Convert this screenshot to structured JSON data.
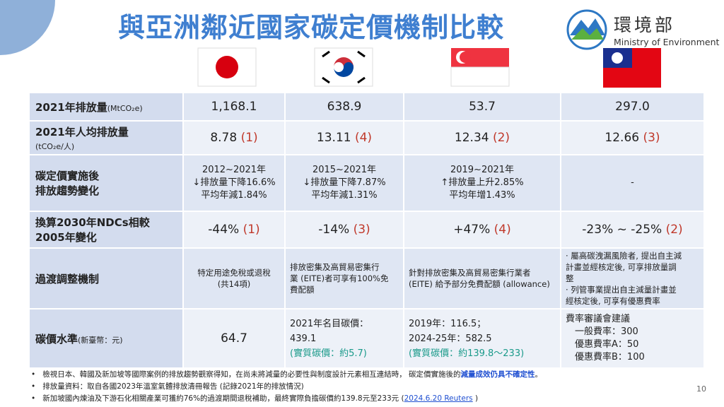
{
  "header": {
    "title": "與亞洲鄰近國家碳定價機制比較",
    "logo_text": "環境部",
    "logo_subtext": "Ministry of Environment"
  },
  "table": {
    "rows": [
      {
        "label": [
          [
            "2021年排放量",
            {
              "text": "(MtCO₂e)",
              "size": "small"
            }
          ]
        ],
        "cells": [
          [
            [
              "1,168.1"
            ]
          ],
          [
            [
              "638.9"
            ]
          ],
          [
            [
              "53.7"
            ]
          ],
          [
            [
              "297.0"
            ]
          ]
        ]
      },
      {
        "label": [
          [
            "2021年人均排放量"
          ],
          [
            {
              "text": "(tCO₂e/人)",
              "size": "small"
            }
          ]
        ],
        "cells": [
          [
            [
              "8.78 ",
              {
                "text": "(1)",
                "color": "#c0392b"
              }
            ]
          ],
          [
            [
              "13.11 ",
              {
                "text": "(4)",
                "color": "#c0392b"
              }
            ]
          ],
          [
            [
              "12.34 ",
              {
                "text": "(2)",
                "color": "#c0392b"
              }
            ]
          ],
          [
            [
              "12.66 ",
              {
                "text": "(3)",
                "color": "#c0392b"
              }
            ]
          ]
        ]
      },
      {
        "label": [
          [
            "碳定價實施後"
          ],
          [
            "排放趨勢變化"
          ]
        ],
        "cells": [
          [
            [
              "2012~2021年"
            ],
            [
              "↓排放量下降16.6%"
            ],
            [
              "平均年減1.84%"
            ]
          ],
          [
            [
              "2015~2021年"
            ],
            [
              "↓排放量下降7.87%"
            ],
            [
              "平均年減1.31%"
            ]
          ],
          [
            [
              "2019~2021年"
            ],
            [
              "↑排放量上升2.85%"
            ],
            [
              "平均年增1.43%"
            ]
          ],
          [
            [
              "-"
            ]
          ]
        ]
      },
      {
        "label": [
          [
            "換算2030年NDCs相較"
          ],
          [
            "2005年變化"
          ]
        ],
        "cells": [
          [
            [
              "-44% ",
              {
                "text": "(1)",
                "color": "#c0392b"
              }
            ]
          ],
          [
            [
              "-14% ",
              {
                "text": "(3)",
                "color": "#c0392b"
              }
            ]
          ],
          [
            [
              "+47% ",
              {
                "text": "(4)",
                "color": "#c0392b"
              }
            ]
          ],
          [
            [
              "-23% ~ -25% ",
              {
                "text": "(2)",
                "color": "#c0392b"
              }
            ]
          ]
        ]
      },
      {
        "label": [
          [
            "過渡調整機制"
          ]
        ],
        "cells": [
          [
            [
              "特定用途免稅或退稅"
            ],
            [
              "(共14項)"
            ]
          ],
          [
            [
              "排放密集及高貿易密集行"
            ],
            [
              "業 (EITE)者可享有100%免"
            ],
            [
              "費配額"
            ]
          ],
          [
            [
              "針對排放密集及高貿易密集行業者"
            ],
            [
              "(EITE) 給予部分免費配額 (allowance)"
            ]
          ],
          [
            [
              "‧ 屬高碳洩漏風險者, 提出自主減"
            ],
            [
              "計畫並經核定後, 可享排放量調"
            ],
            [
              "整"
            ],
            [
              "‧ 列管事業提出自主減量計畫並"
            ],
            [
              "經核定後, 可享有優惠費率"
            ]
          ]
        ]
      },
      {
        "label": [
          [
            "碳價水準",
            {
              "text": "(新臺幣：元)",
              "size": "small"
            }
          ]
        ],
        "cells": [
          [
            [
              "64.7"
            ]
          ],
          [
            [
              "2021年名目碳價："
            ],
            [
              "439.1"
            ],
            [
              {
                "text": "(實質碳價：約5.7)",
                "color": "#1a9a8a"
              }
            ]
          ],
          [
            [
              "2019年：116.5；"
            ],
            [
              "2024-25年：582.5"
            ],
            [
              {
                "text": "(實質碳價：約139.8～233)",
                "color": "#1a9a8a"
              }
            ]
          ],
          [
            [
              "費率審議會建議"
            ],
            [
              "　一般費率：300"
            ],
            [
              "　優惠費率A：50"
            ],
            [
              "　優惠費率B：100"
            ]
          ]
        ]
      }
    ]
  },
  "footnotes": [
    [
      "檢視日本、韓國及新加坡等國際案例的排放趨勢觀察得知，在尚未將減量的必要性與制度設計元素相互連結時， 碳定價實施後的",
      {
        "text": "減量成效仍具不確定性",
        "color": "#1f4fd1",
        "bold": true
      },
      "。"
    ],
    [
      "排放量資料：取自各國2023年溫室氣體排放清冊報告 (記錄2021年的排放情況)"
    ],
    [
      "新加坡國內煉油及下游石化相關產業可獲約76%的過渡期間退稅補助，最終實際負擔碳價約139.8元至233元 (",
      {
        "text": "2024.6.20 Reuters",
        "color": "#1f4fd1",
        "underline": true
      },
      " )"
    ]
  ],
  "page_number": "10"
}
